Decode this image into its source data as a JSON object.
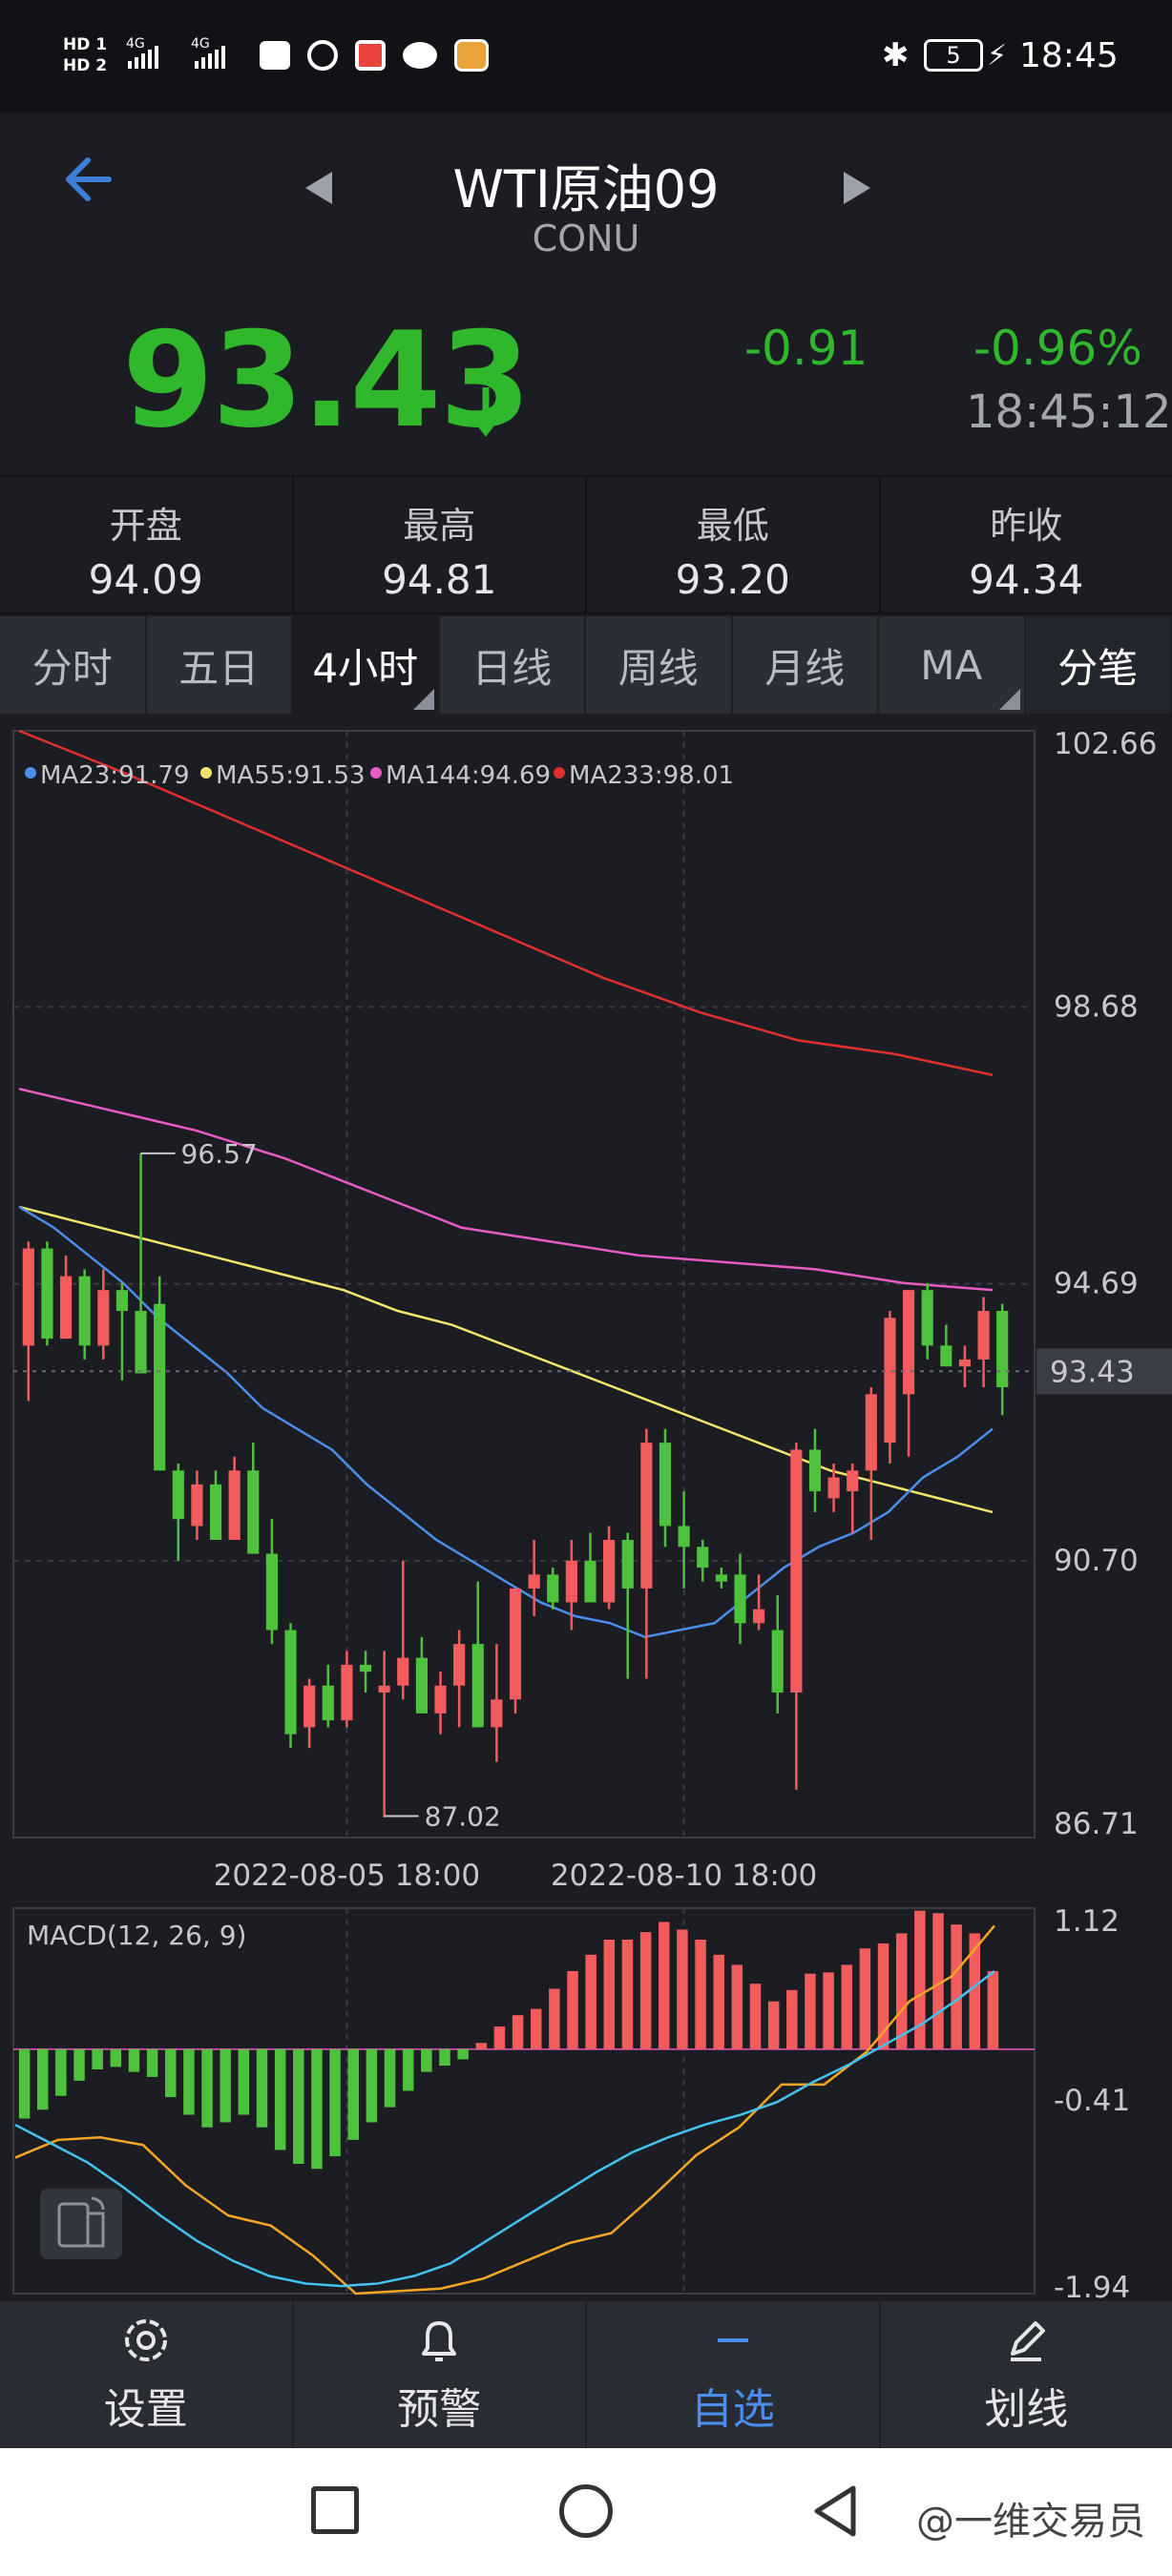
{
  "status": {
    "time": "18:45",
    "battery": "5",
    "hd1": "HD 1",
    "hd2": "HD 2",
    "net1": "4G",
    "net2": "4G"
  },
  "header": {
    "title": "WTI原油09",
    "subtitle": "CONU"
  },
  "quote": {
    "last": "93.43",
    "change": "-0.91",
    "change_pct": "-0.96%",
    "time": "18:45:12"
  },
  "stats": [
    {
      "label": "开盘",
      "value": "94.09"
    },
    {
      "label": "最高",
      "value": "94.81"
    },
    {
      "label": "最低",
      "value": "93.20"
    },
    {
      "label": "昨收",
      "value": "94.34"
    }
  ],
  "tabs": [
    "分时",
    "五日",
    "4小时",
    "日线",
    "周线",
    "月线",
    "MA",
    "分笔"
  ],
  "nav": [
    {
      "label": "设置",
      "icon": "gear-icon"
    },
    {
      "label": "预警",
      "icon": "bell-icon"
    },
    {
      "label": "自选",
      "icon": "minus-icon"
    },
    {
      "label": "划线",
      "icon": "pen-icon"
    }
  ],
  "watermark": "@一维交易员",
  "colors": {
    "up": "#f25c5c",
    "down": "#4fc23d",
    "ma23": "#4a8ef0",
    "ma55": "#f2e56b",
    "ma144": "#e85ac4",
    "ma233": "#e0302c",
    "dif": "#41c4f2",
    "dea": "#f5a623"
  },
  "chart_data": [
    {
      "type": "candlestick",
      "legend": [
        {
          "name": "MA23",
          "value": "91.79"
        },
        {
          "name": "MA55",
          "value": "91.53"
        },
        {
          "name": "MA144",
          "value": "94.69"
        },
        {
          "name": "MA233",
          "value": "98.01"
        }
      ],
      "y_ticks": [
        "102.66",
        "98.68",
        "94.69",
        "90.70",
        "86.71"
      ],
      "ylim": [
        86.71,
        102.66
      ],
      "x_ticks": [
        "2022-08-05 18:00",
        "2022-08-10 18:00"
      ],
      "current_price_label": "93.43",
      "high_annotation": "96.57",
      "low_annotation": "87.02",
      "candles": [
        [
          93.8,
          95.3,
          93.0,
          95.2
        ],
        [
          95.2,
          95.3,
          93.8,
          93.9
        ],
        [
          93.9,
          95.1,
          93.9,
          94.8
        ],
        [
          94.8,
          94.9,
          93.6,
          93.8
        ],
        [
          93.8,
          94.9,
          93.6,
          94.6
        ],
        [
          94.6,
          94.7,
          93.3,
          94.3
        ],
        [
          94.3,
          96.57,
          93.4,
          93.4
        ],
        [
          94.4,
          94.8,
          92.0,
          92.0
        ],
        [
          92.0,
          92.1,
          90.7,
          91.3
        ],
        [
          91.2,
          92.0,
          91.0,
          91.8
        ],
        [
          91.8,
          92.0,
          91.0,
          91.0
        ],
        [
          91.0,
          92.2,
          91.0,
          92.0
        ],
        [
          92.0,
          92.4,
          90.8,
          90.8
        ],
        [
          90.8,
          91.3,
          89.5,
          89.7
        ],
        [
          89.7,
          89.8,
          88.0,
          88.2
        ],
        [
          88.3,
          89.0,
          88.0,
          88.9
        ],
        [
          88.9,
          89.2,
          88.3,
          88.4
        ],
        [
          88.4,
          89.4,
          88.3,
          89.2
        ],
        [
          89.2,
          89.4,
          88.8,
          89.1
        ],
        [
          88.8,
          89.4,
          87.0,
          88.9
        ],
        [
          88.9,
          90.7,
          88.7,
          89.3
        ],
        [
          89.3,
          89.6,
          88.5,
          88.5
        ],
        [
          88.5,
          89.1,
          88.2,
          88.9
        ],
        [
          88.9,
          89.7,
          88.3,
          89.5
        ],
        [
          89.5,
          90.4,
          88.3,
          88.3
        ],
        [
          88.3,
          89.5,
          87.8,
          88.7
        ],
        [
          88.7,
          90.3,
          88.5,
          90.3
        ],
        [
          90.3,
          91.0,
          89.9,
          90.5
        ],
        [
          90.5,
          90.6,
          90.0,
          90.1
        ],
        [
          90.1,
          91.0,
          89.7,
          90.7
        ],
        [
          90.7,
          91.1,
          90.2,
          90.1
        ],
        [
          90.1,
          91.2,
          90.0,
          91.0
        ],
        [
          91.0,
          91.1,
          89.0,
          90.3
        ],
        [
          90.3,
          92.6,
          89.0,
          92.4
        ],
        [
          92.4,
          92.6,
          90.9,
          91.2
        ],
        [
          91.2,
          91.7,
          90.3,
          90.9
        ],
        [
          90.9,
          91.0,
          90.4,
          90.6
        ],
        [
          90.5,
          90.6,
          90.3,
          90.4
        ],
        [
          90.5,
          90.8,
          89.5,
          89.8
        ],
        [
          89.8,
          90.5,
          89.7,
          90.0
        ],
        [
          89.7,
          90.2,
          88.5,
          88.8
        ],
        [
          88.8,
          92.4,
          87.4,
          92.3
        ],
        [
          92.3,
          92.6,
          91.4,
          91.7
        ],
        [
          91.6,
          92.1,
          91.4,
          91.9
        ],
        [
          91.7,
          92.1,
          91.1,
          92.0
        ],
        [
          92.0,
          93.2,
          91.0,
          93.1
        ],
        [
          92.4,
          94.3,
          92.1,
          94.2
        ],
        [
          93.1,
          94.6,
          92.2,
          94.6
        ],
        [
          94.6,
          94.7,
          93.6,
          93.8
        ],
        [
          93.8,
          94.1,
          93.5,
          93.5
        ],
        [
          93.5,
          93.8,
          93.2,
          93.6
        ],
        [
          93.6,
          94.5,
          93.2,
          94.3
        ],
        [
          94.3,
          94.4,
          92.8,
          93.2
        ]
      ],
      "ma23": [
        95.8,
        95.5,
        95.1,
        94.7,
        94.2,
        93.8,
        93.4,
        92.9,
        92.6,
        92.3,
        91.8,
        91.4,
        91.0,
        90.7,
        90.4,
        90.1,
        89.9,
        89.8,
        89.6,
        89.7,
        89.8,
        90.2,
        90.6,
        90.9,
        91.1,
        91.4,
        91.9,
        92.2,
        92.6
      ],
      "ma55": [
        95.8,
        95.6,
        95.4,
        95.2,
        95.0,
        94.8,
        94.6,
        94.3,
        94.1,
        93.8,
        93.5,
        93.2,
        92.9,
        92.6,
        92.3,
        92.0,
        91.8,
        91.6,
        91.4
      ],
      "ma144": [
        97.5,
        97.2,
        96.9,
        96.5,
        96.0,
        95.5,
        95.3,
        95.1,
        95.0,
        94.9,
        94.7,
        94.6
      ],
      "ma233": [
        102.66,
        102.1,
        101.5,
        100.9,
        100.3,
        99.7,
        99.1,
        98.6,
        98.2,
        98.0,
        97.7
      ]
    },
    {
      "type": "bar",
      "title": "MACD(12, 26, 9)",
      "y_ticks": [
        "1.12",
        "-0.41",
        "-1.94"
      ],
      "ylim": [
        -1.94,
        1.12
      ],
      "histogram": [
        -0.55,
        -0.48,
        -0.37,
        -0.25,
        -0.16,
        -0.14,
        -0.18,
        -0.22,
        -0.38,
        -0.52,
        -0.62,
        -0.58,
        -0.52,
        -0.62,
        -0.8,
        -0.91,
        -0.95,
        -0.85,
        -0.72,
        -0.58,
        -0.46,
        -0.33,
        -0.18,
        -0.13,
        -0.08,
        0.05,
        0.18,
        0.27,
        0.32,
        0.48,
        0.62,
        0.75,
        0.87,
        0.87,
        0.93,
        1.01,
        0.95,
        0.87,
        0.75,
        0.67,
        0.52,
        0.38,
        0.47,
        0.6,
        0.61,
        0.67,
        0.8,
        0.84,
        0.92,
        1.1,
        1.08,
        0.99,
        0.92,
        0.62
      ],
      "dif": [
        -0.6,
        -0.75,
        -0.9,
        -1.1,
        -1.32,
        -1.52,
        -1.68,
        -1.8,
        -1.86,
        -1.88,
        -1.86,
        -1.8,
        -1.7,
        -1.52,
        -1.34,
        -1.16,
        -0.98,
        -0.82,
        -0.7,
        -0.6,
        -0.52,
        -0.42,
        -0.26,
        -0.12,
        0.04,
        0.2,
        0.4,
        0.62
      ],
      "dea": [
        -0.86,
        -0.72,
        -0.7,
        -0.76,
        -1.08,
        -1.32,
        -1.4,
        -1.64,
        -1.94,
        -1.92,
        -1.9,
        -1.82,
        -1.68,
        -1.54,
        -1.46,
        -1.16,
        -0.84,
        -0.62,
        -0.28,
        -0.28,
        -0.02,
        0.38,
        0.58,
        0.98
      ]
    }
  ]
}
